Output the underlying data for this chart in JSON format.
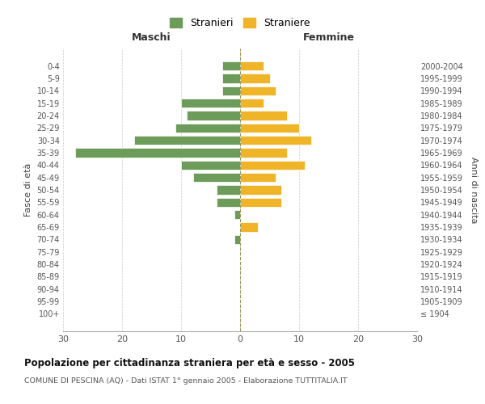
{
  "age_groups": [
    "100+",
    "95-99",
    "90-94",
    "85-89",
    "80-84",
    "75-79",
    "70-74",
    "65-69",
    "60-64",
    "55-59",
    "50-54",
    "45-49",
    "40-44",
    "35-39",
    "30-34",
    "25-29",
    "20-24",
    "15-19",
    "10-14",
    "5-9",
    "0-4"
  ],
  "birth_years": [
    "≤ 1904",
    "1905-1909",
    "1910-1914",
    "1915-1919",
    "1920-1924",
    "1925-1929",
    "1930-1934",
    "1935-1939",
    "1940-1944",
    "1945-1949",
    "1950-1954",
    "1955-1959",
    "1960-1964",
    "1965-1969",
    "1970-1974",
    "1975-1979",
    "1980-1984",
    "1985-1989",
    "1990-1994",
    "1995-1999",
    "2000-2004"
  ],
  "maschi": [
    0,
    0,
    0,
    0,
    0,
    0,
    1,
    0,
    1,
    4,
    4,
    8,
    10,
    28,
    18,
    11,
    9,
    10,
    3,
    3,
    3
  ],
  "femmine": [
    0,
    0,
    0,
    0,
    0,
    0,
    0,
    3,
    0,
    7,
    7,
    6,
    11,
    8,
    12,
    10,
    8,
    4,
    6,
    5,
    4
  ],
  "color_maschi": "#6d9b5a",
  "color_femmine": "#f0b429",
  "title": "Popolazione per cittadinanza straniera per età e sesso - 2005",
  "subtitle": "COMUNE DI PESCINA (AQ) - Dati ISTAT 1° gennaio 2005 - Elaborazione TUTTITALIA.IT",
  "xlabel_left": "Maschi",
  "xlabel_right": "Femmine",
  "ylabel_left": "Fasce di età",
  "ylabel_right": "Anni di nascita",
  "legend_maschi": "Stranieri",
  "legend_femmine": "Straniere",
  "xlim": 30,
  "background_color": "#ffffff",
  "grid_color": "#cccccc"
}
